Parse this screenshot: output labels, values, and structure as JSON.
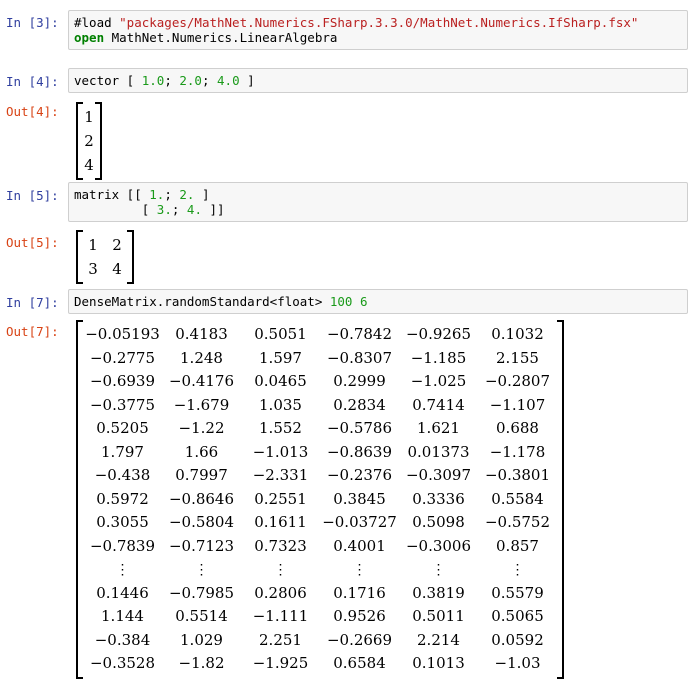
{
  "cells": [
    {
      "in_prompt": "In [3]:",
      "code_lines": [
        [
          {
            "t": "#load ",
            "c": ""
          },
          {
            "t": "\"packages/MathNet.Numerics.FSharp.3.3.0/MathNet.Numerics.IfSharp.fsx\"",
            "c": "str"
          }
        ],
        [
          {
            "t": "open",
            "c": "kw"
          },
          {
            "t": " MathNet.Numerics.LinearAlgebra",
            "c": ""
          }
        ]
      ]
    },
    {
      "in_prompt": "In [4]:",
      "code_lines": [
        [
          {
            "t": "vector [ ",
            "c": ""
          },
          {
            "t": "1.0",
            "c": "num"
          },
          {
            "t": "; ",
            "c": ""
          },
          {
            "t": "2.0",
            "c": "num"
          },
          {
            "t": "; ",
            "c": ""
          },
          {
            "t": "4.0",
            "c": "num"
          },
          {
            "t": " ]",
            "c": ""
          }
        ]
      ],
      "out_prompt": "Out[4]:",
      "output_matrix": [
        [
          "1"
        ],
        [
          "2"
        ],
        [
          "4"
        ]
      ]
    },
    {
      "in_prompt": "In [5]:",
      "code_lines": [
        [
          {
            "t": "matrix [[ ",
            "c": ""
          },
          {
            "t": "1.",
            "c": "num"
          },
          {
            "t": "; ",
            "c": ""
          },
          {
            "t": "2.",
            "c": "num"
          },
          {
            "t": " ]",
            "c": ""
          }
        ],
        [
          {
            "t": "         [ ",
            "c": ""
          },
          {
            "t": "3.",
            "c": "num"
          },
          {
            "t": "; ",
            "c": ""
          },
          {
            "t": "4.",
            "c": "num"
          },
          {
            "t": " ]]",
            "c": ""
          }
        ]
      ],
      "out_prompt": "Out[5]:",
      "output_matrix": [
        [
          "1",
          "2"
        ],
        [
          "3",
          "4"
        ]
      ]
    },
    {
      "in_prompt": "In [7]:",
      "code_lines": [
        [
          {
            "t": "DenseMatrix.randomStandard<float> ",
            "c": ""
          },
          {
            "t": "100",
            "c": "num"
          },
          {
            "t": " ",
            "c": ""
          },
          {
            "t": "6",
            "c": "num"
          }
        ]
      ],
      "out_prompt": "Out[7]:",
      "output_matrix": [
        [
          "−0.05193",
          "0.4183",
          "0.5051",
          "−0.7842",
          "−0.9265",
          "0.1032"
        ],
        [
          "−0.2775",
          "1.248",
          "1.597",
          "−0.8307",
          "−1.185",
          "2.155"
        ],
        [
          "−0.6939",
          "−0.4176",
          "0.0465",
          "0.2999",
          "−1.025",
          "−0.2807"
        ],
        [
          "−0.3775",
          "−1.679",
          "1.035",
          "0.2834",
          "0.7414",
          "−1.107"
        ],
        [
          "0.5205",
          "−1.22",
          "1.552",
          "−0.5786",
          "1.621",
          "0.688"
        ],
        [
          "1.797",
          "1.66",
          "−1.013",
          "−0.8639",
          "0.01373",
          "−1.178"
        ],
        [
          "−0.438",
          "0.7997",
          "−2.331",
          "−0.2376",
          "−0.3097",
          "−0.3801"
        ],
        [
          "0.5972",
          "−0.8646",
          "0.2551",
          "0.3845",
          "0.3336",
          "0.5584"
        ],
        [
          "0.3055",
          "−0.5804",
          "0.1611",
          "−0.03727",
          "0.5098",
          "−0.5752"
        ],
        [
          "−0.7839",
          "−0.7123",
          "0.7323",
          "0.4001",
          "−0.3006",
          "0.857"
        ],
        [
          "⋮",
          "⋮",
          "⋮",
          "⋮",
          "⋮",
          "⋮"
        ],
        [
          "0.1446",
          "−0.7985",
          "0.2806",
          "0.1716",
          "0.3819",
          "0.5579"
        ],
        [
          "1.144",
          "0.5514",
          "−1.111",
          "0.9526",
          "0.5011",
          "0.5065"
        ],
        [
          "−0.384",
          "1.029",
          "2.251",
          "−0.2669",
          "2.214",
          "0.0592"
        ],
        [
          "−0.3528",
          "−1.82",
          "−1.925",
          "0.6584",
          "0.1013",
          "−1.03"
        ]
      ]
    }
  ]
}
